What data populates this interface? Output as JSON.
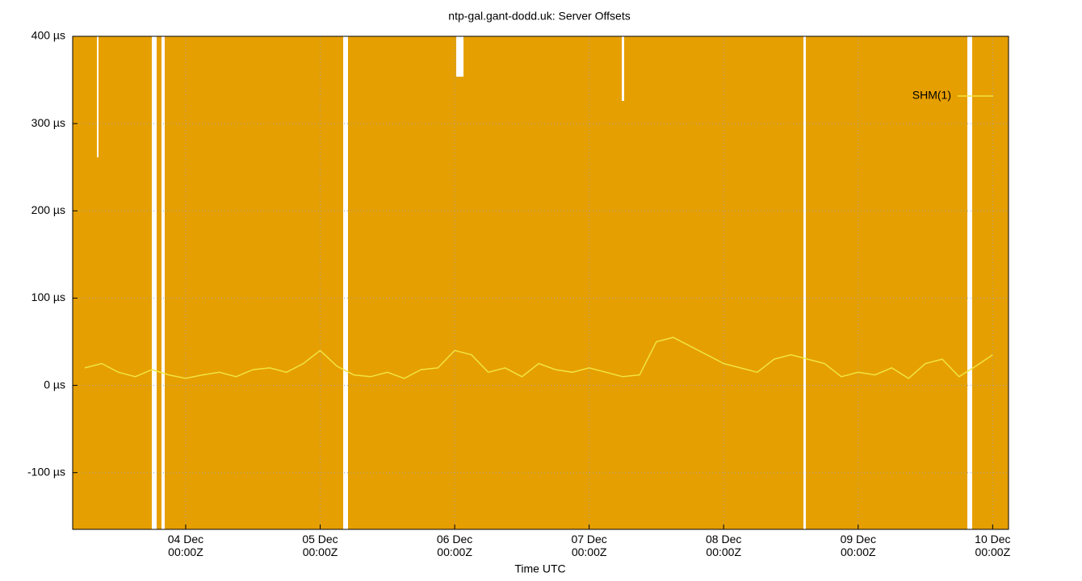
{
  "chart_data": {
    "type": "line",
    "title": "ntp-gal.gant-dodd.uk: Server Offsets",
    "x_label": "Time UTC",
    "x": [
      "03 Dec 06:00Z",
      "03 Dec 09:00Z",
      "03 Dec 12:00Z",
      "03 Dec 15:00Z",
      "03 Dec 18:00Z",
      "03 Dec 21:00Z",
      "04 Dec 00:00Z",
      "04 Dec 03:00Z",
      "04 Dec 06:00Z",
      "04 Dec 09:00Z",
      "04 Dec 12:00Z",
      "04 Dec 15:00Z",
      "04 Dec 18:00Z",
      "04 Dec 21:00Z",
      "05 Dec 00:00Z",
      "05 Dec 03:00Z",
      "05 Dec 06:00Z",
      "05 Dec 09:00Z",
      "05 Dec 12:00Z",
      "05 Dec 15:00Z",
      "05 Dec 18:00Z",
      "05 Dec 21:00Z",
      "06 Dec 00:00Z",
      "06 Dec 03:00Z",
      "06 Dec 06:00Z",
      "06 Dec 09:00Z",
      "06 Dec 12:00Z",
      "06 Dec 15:00Z",
      "06 Dec 18:00Z",
      "06 Dec 21:00Z",
      "07 Dec 00:00Z",
      "07 Dec 03:00Z",
      "07 Dec 06:00Z",
      "07 Dec 09:00Z",
      "07 Dec 12:00Z",
      "07 Dec 15:00Z",
      "07 Dec 18:00Z",
      "07 Dec 21:00Z",
      "08 Dec 00:00Z",
      "08 Dec 03:00Z",
      "08 Dec 06:00Z",
      "08 Dec 09:00Z",
      "08 Dec 12:00Z",
      "08 Dec 15:00Z",
      "08 Dec 18:00Z",
      "08 Dec 21:00Z",
      "09 Dec 00:00Z",
      "09 Dec 03:00Z",
      "09 Dec 06:00Z",
      "09 Dec 09:00Z",
      "09 Dec 12:00Z",
      "09 Dec 15:00Z",
      "09 Dec 18:00Z",
      "09 Dec 21:00Z",
      "10 Dec 00:00Z"
    ],
    "series": [
      {
        "name": "SHM(1)",
        "color": "#f0e442",
        "values": [
          20,
          25,
          15,
          10,
          18,
          12,
          8,
          12,
          15,
          10,
          18,
          20,
          15,
          25,
          40,
          22,
          12,
          10,
          15,
          8,
          18,
          20,
          40,
          35,
          15,
          20,
          10,
          25,
          18,
          15,
          20,
          15,
          10,
          12,
          50,
          55,
          45,
          35,
          25,
          20,
          15,
          30,
          35,
          30,
          25,
          10,
          15,
          12,
          20,
          8,
          25,
          30,
          10,
          22,
          35
        ]
      }
    ],
    "xlim": [
      "03 Dec 03:50Z",
      "10 Dec 02:50Z"
    ],
    "xticks": [
      "04 Dec 00:00Z",
      "05 Dec 00:00Z",
      "06 Dec 00:00Z",
      "07 Dec 00:00Z",
      "08 Dec 00:00Z",
      "09 Dec 00:00Z",
      "10 Dec 00:00Z"
    ],
    "ylim": [
      -165,
      400
    ],
    "yticks": [
      {
        "value": -100,
        "label": "-100 µs"
      },
      {
        "value": 0,
        "label": "0 µs"
      },
      {
        "value": 100,
        "label": "100 µs"
      },
      {
        "value": 200,
        "label": "200 µs"
      },
      {
        "value": 300,
        "label": "300 µs"
      },
      {
        "value": 400,
        "label": "400 µs"
      }
    ],
    "grid": true
  }
}
